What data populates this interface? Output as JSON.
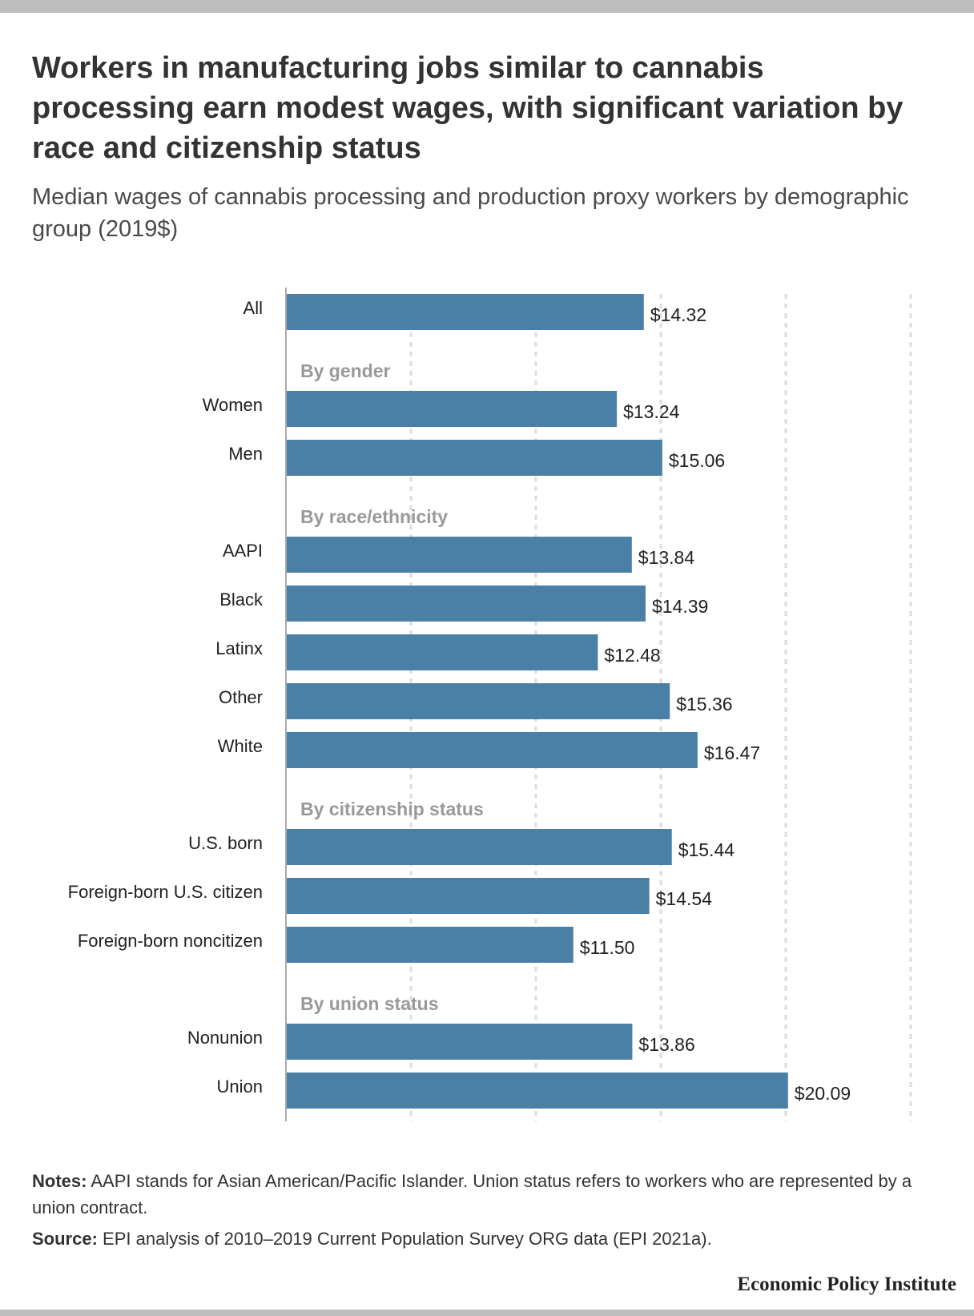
{
  "title": "Workers in manufacturing jobs similar to cannabis processing earn modest wages, with significant variation by race and citizenship status",
  "subtitle": "Median wages of cannabis processing and production proxy workers by demographic group (2019$)",
  "notes_label": "Notes:",
  "notes_text": " AAPI stands for Asian American/Pacific Islander. Union status refers to workers who are represented by a union contract.",
  "source_label": "Source:",
  "source_text": " EPI analysis of 2010–2019 Current Population Survey ORG data (EPI 2021a).",
  "brand": "Economic Policy Institute",
  "colors": {
    "bar": "#4a80a5",
    "group_heading": "#999999",
    "grid": "#dddddd",
    "axis": "#aaaaaa"
  },
  "chart_data": {
    "type": "bar",
    "orientation": "horizontal",
    "xlim": [
      0,
      25
    ],
    "grid": true,
    "rows": [
      {
        "kind": "bar",
        "label": "All",
        "value": 14.32,
        "value_label": "$14.32"
      },
      {
        "kind": "group",
        "label": "By gender"
      },
      {
        "kind": "bar",
        "label": "Women",
        "value": 13.24,
        "value_label": "$13.24"
      },
      {
        "kind": "bar",
        "label": "Men",
        "value": 15.06,
        "value_label": "$15.06"
      },
      {
        "kind": "group",
        "label": "By race/ethnicity"
      },
      {
        "kind": "bar",
        "label": "AAPI",
        "value": 13.84,
        "value_label": "$13.84"
      },
      {
        "kind": "bar",
        "label": "Black",
        "value": 14.39,
        "value_label": "$14.39"
      },
      {
        "kind": "bar",
        "label": "Latinx",
        "value": 12.48,
        "value_label": "$12.48"
      },
      {
        "kind": "bar",
        "label": "Other",
        "value": 15.36,
        "value_label": "$15.36"
      },
      {
        "kind": "bar",
        "label": "White",
        "value": 16.47,
        "value_label": "$16.47"
      },
      {
        "kind": "group",
        "label": "By citizenship status"
      },
      {
        "kind": "bar",
        "label": "U.S. born",
        "value": 15.44,
        "value_label": "$15.44"
      },
      {
        "kind": "bar",
        "label": "Foreign-born U.S. citizen",
        "value": 14.54,
        "value_label": "$14.54"
      },
      {
        "kind": "bar",
        "label": "Foreign-born noncitizen",
        "value": 11.5,
        "value_label": "$11.50"
      },
      {
        "kind": "group",
        "label": "By union status"
      },
      {
        "kind": "bar",
        "label": "Nonunion",
        "value": 13.86,
        "value_label": "$13.86"
      },
      {
        "kind": "bar",
        "label": "Union",
        "value": 20.09,
        "value_label": "$20.09"
      }
    ]
  }
}
